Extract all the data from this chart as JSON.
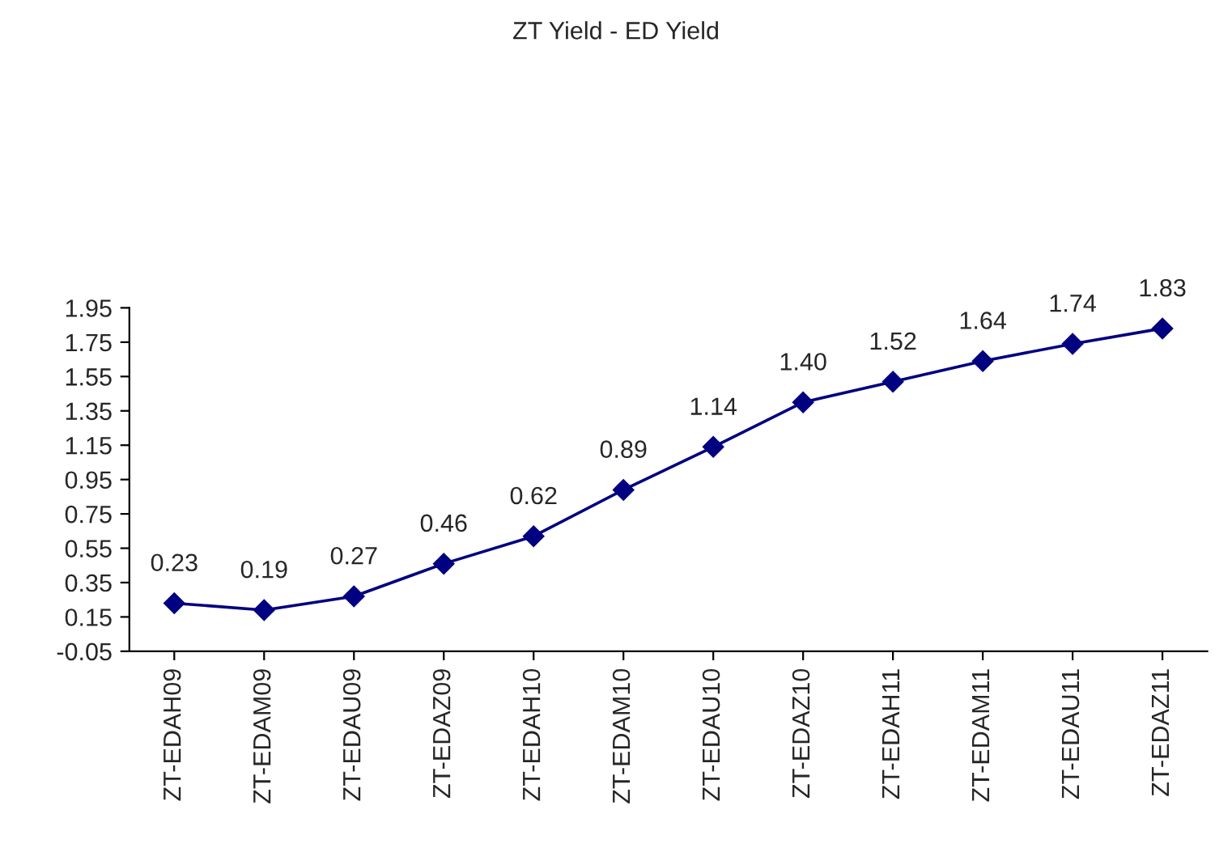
{
  "chart_data": {
    "type": "line",
    "title": "ZT Yield - ED Yield",
    "categories": [
      "ZT-EDAH09",
      "ZT-EDAM09",
      "ZT-EDAU09",
      "ZT-EDAZ09",
      "ZT-EDAH10",
      "ZT-EDAM10",
      "ZT-EDAU10",
      "ZT-EDAZ10",
      "ZT-EDAH11",
      "ZT-EDAM11",
      "ZT-EDAU11",
      "ZT-EDAZ11"
    ],
    "series": [
      {
        "color": "#000080",
        "values": [
          0.23,
          0.19,
          0.27,
          0.46,
          0.62,
          0.89,
          1.14,
          1.4,
          1.52,
          1.64,
          1.74,
          1.83
        ],
        "value_labels": [
          "0.23",
          "0.19",
          "0.27",
          "0.46",
          "0.62",
          "0.89",
          "1.14",
          "1.40",
          "1.52",
          "1.64",
          "1.74",
          "1.83"
        ]
      }
    ],
    "ylim": [
      -0.05,
      1.95
    ],
    "yticks": [
      -0.05,
      0.15,
      0.35,
      0.55,
      0.75,
      0.95,
      1.15,
      1.35,
      1.55,
      1.75,
      1.95
    ],
    "marker": "diamond",
    "line_style": "solid",
    "grid": false,
    "legend": false
  }
}
